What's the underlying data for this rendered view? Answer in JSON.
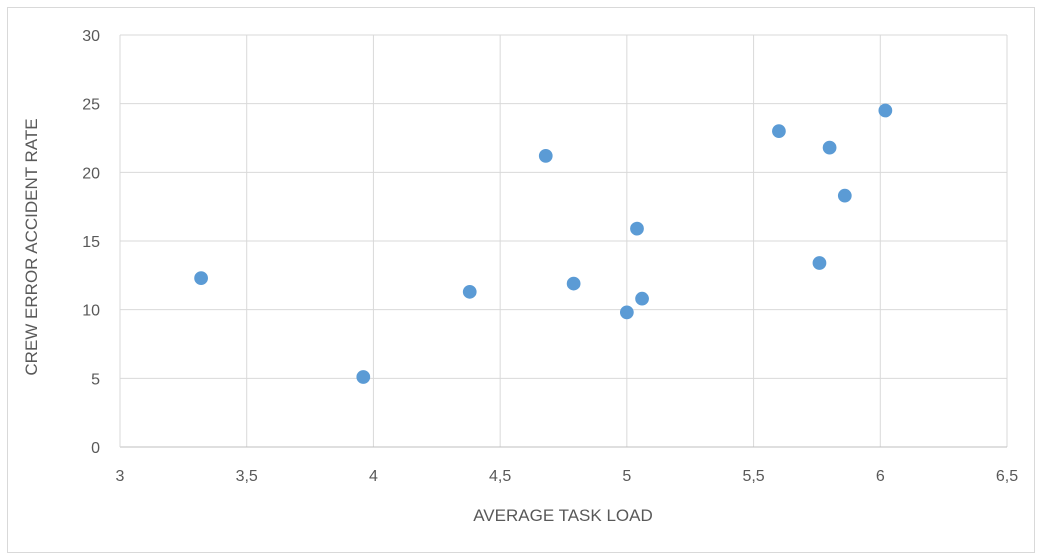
{
  "chart_data": {
    "type": "scatter",
    "title": "",
    "xlabel": "AVERAGE TASK LOAD",
    "ylabel": "CREW ERROR ACCIDENT RATE",
    "xlim": [
      3,
      6.5
    ],
    "ylim": [
      0,
      30
    ],
    "x_ticks": [
      "3",
      "3,5",
      "4",
      "4,5",
      "5",
      "5,5",
      "6",
      "6,5"
    ],
    "y_ticks": [
      "0",
      "5",
      "10",
      "15",
      "20",
      "25",
      "30"
    ],
    "grid": true,
    "legend": "none",
    "marker_color": "#5B9BD5",
    "points": [
      {
        "x": 3.32,
        "y": 12.3
      },
      {
        "x": 3.96,
        "y": 5.1
      },
      {
        "x": 4.38,
        "y": 11.3
      },
      {
        "x": 4.68,
        "y": 21.2
      },
      {
        "x": 4.79,
        "y": 11.9
      },
      {
        "x": 5.0,
        "y": 9.8
      },
      {
        "x": 5.04,
        "y": 15.9
      },
      {
        "x": 5.06,
        "y": 10.8
      },
      {
        "x": 5.6,
        "y": 23.0
      },
      {
        "x": 5.76,
        "y": 13.4
      },
      {
        "x": 5.8,
        "y": 21.8
      },
      {
        "x": 5.86,
        "y": 18.3
      },
      {
        "x": 6.02,
        "y": 24.5
      }
    ]
  }
}
